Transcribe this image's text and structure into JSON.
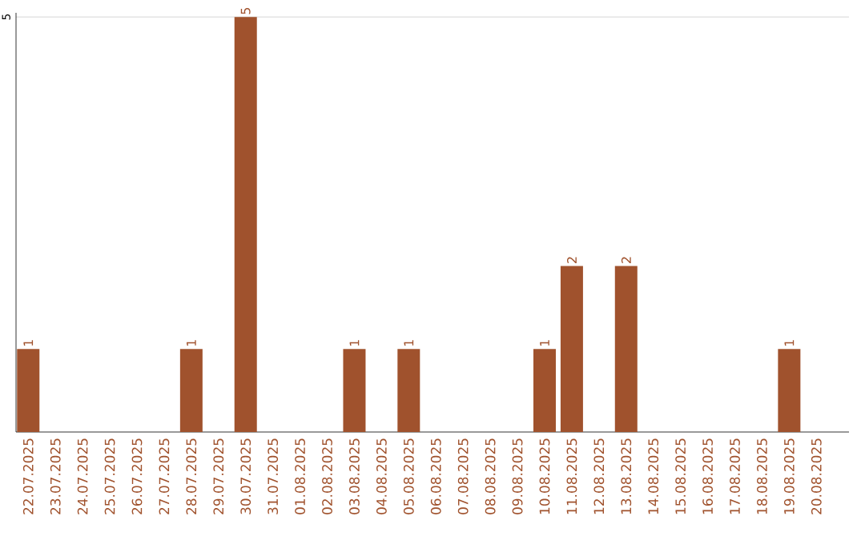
{
  "chart_data": {
    "type": "bar",
    "categories": [
      "22.07.2025",
      "23.07.2025",
      "24.07.2025",
      "25.07.2025",
      "26.07.2025",
      "27.07.2025",
      "28.07.2025",
      "29.07.2025",
      "30.07.2025",
      "31.07.2025",
      "01.08.2025",
      "02.08.2025",
      "03.08.2025",
      "04.08.2025",
      "05.08.2025",
      "06.08.2025",
      "07.08.2025",
      "08.08.2025",
      "09.08.2025",
      "10.08.2025",
      "11.08.2025",
      "12.08.2025",
      "13.08.2025",
      "14.08.2025",
      "15.08.2025",
      "16.08.2025",
      "17.08.2025",
      "18.08.2025",
      "19.08.2025",
      "20.08.2025"
    ],
    "values": [
      1,
      0,
      0,
      0,
      0,
      0,
      1,
      0,
      5,
      0,
      0,
      0,
      1,
      0,
      1,
      0,
      0,
      0,
      0,
      1,
      2,
      0,
      2,
      0,
      0,
      0,
      0,
      0,
      1,
      0
    ],
    "color": "#a0522d",
    "value_labels": [
      "1",
      null,
      null,
      null,
      null,
      null,
      "1",
      null,
      "5",
      null,
      null,
      null,
      "1",
      null,
      "1",
      null,
      null,
      null,
      null,
      "1",
      "2",
      null,
      "2",
      null,
      null,
      null,
      null,
      null,
      "1",
      null
    ],
    "ylim": [
      0,
      5.05
    ],
    "yticks": [
      5
    ],
    "grid": "y"
  }
}
